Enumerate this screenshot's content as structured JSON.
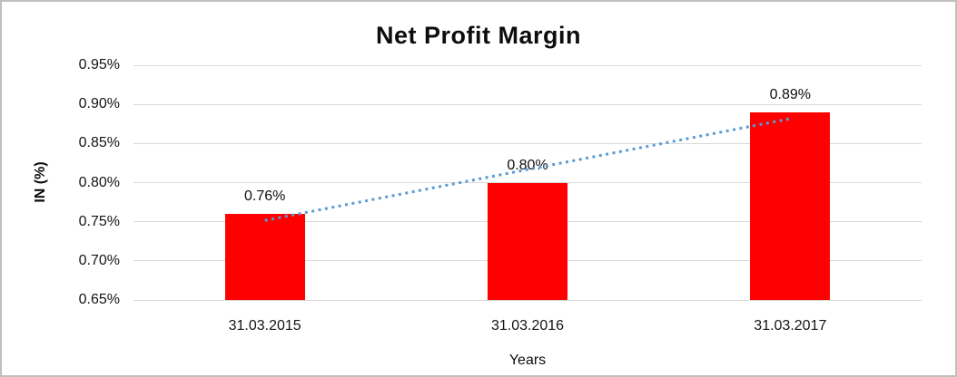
{
  "window": {
    "background": "#ffffff",
    "frame_border_color": "#bfbfbf"
  },
  "chart_data": {
    "type": "bar",
    "title": "Net Profit Margin",
    "xlabel": "Years",
    "ylabel": "IN (%)",
    "categories": [
      "31.03.2015",
      "31.03.2016",
      "31.03.2017"
    ],
    "series": [
      {
        "name": "Net Profit Margin",
        "values": [
          0.76,
          0.8,
          0.89
        ]
      }
    ],
    "data_labels": [
      "0.76%",
      "0.80%",
      "0.89%"
    ],
    "ylim": [
      0.65,
      0.95
    ],
    "ytick_values": [
      0.65,
      0.7,
      0.75,
      0.8,
      0.85,
      0.9,
      0.95
    ],
    "ytick_labels": [
      "0.65%",
      "0.70%",
      "0.75%",
      "0.80%",
      "0.85%",
      "0.90%",
      "0.95%"
    ],
    "grid": true,
    "gridline_color": "#d9d9d9",
    "bar_color": "#ff0000",
    "legend": "none",
    "trendline": {
      "type": "linear",
      "style": "dotted",
      "color": "#5b9bd5"
    }
  }
}
